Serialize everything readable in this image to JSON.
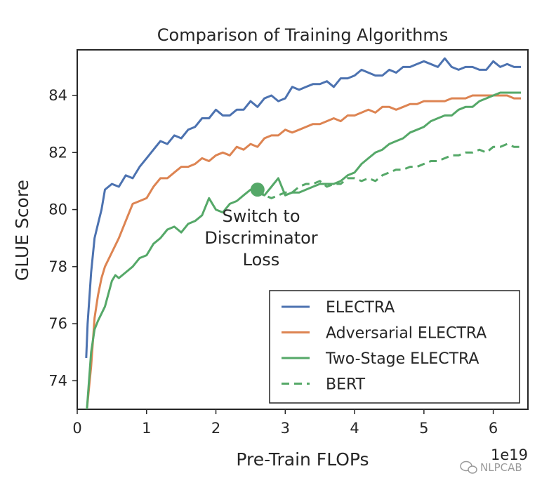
{
  "chart_data": {
    "type": "line",
    "title": "Comparison of Training Algorithms",
    "xlabel": "Pre-Train FLOPs",
    "ylabel": "GLUE Score",
    "x_scale_label": "1e19",
    "xlim": [
      0,
      6.5
    ],
    "ylim": [
      73,
      85.6
    ],
    "xticks": [
      0,
      1,
      2,
      3,
      4,
      5,
      6
    ],
    "yticks": [
      74,
      76,
      78,
      80,
      82,
      84
    ],
    "grid": false,
    "legend_position": "lower-right",
    "annotation": {
      "text_lines": [
        "Switch to",
        "Discriminator",
        "Loss"
      ],
      "marker_x": 2.6,
      "marker_y": 80.7
    },
    "series": [
      {
        "name": "ELECTRA",
        "color": "#4c72b0",
        "style": "solid",
        "x": [
          0.13,
          0.15,
          0.2,
          0.25,
          0.3,
          0.35,
          0.4,
          0.5,
          0.6,
          0.7,
          0.8,
          0.9,
          1.0,
          1.1,
          1.2,
          1.3,
          1.4,
          1.5,
          1.6,
          1.7,
          1.8,
          1.9,
          2.0,
          2.1,
          2.2,
          2.3,
          2.4,
          2.5,
          2.6,
          2.7,
          2.8,
          2.9,
          3.0,
          3.1,
          3.2,
          3.3,
          3.4,
          3.5,
          3.6,
          3.7,
          3.8,
          3.9,
          4.0,
          4.1,
          4.2,
          4.3,
          4.4,
          4.5,
          4.6,
          4.7,
          4.8,
          4.9,
          5.0,
          5.1,
          5.2,
          5.3,
          5.4,
          5.5,
          5.6,
          5.7,
          5.8,
          5.9,
          6.0,
          6.1,
          6.2,
          6.3,
          6.4
        ],
        "y": [
          74.8,
          76.0,
          77.8,
          79.0,
          79.5,
          80.0,
          80.7,
          80.9,
          80.8,
          81.2,
          81.1,
          81.5,
          81.8,
          82.1,
          82.4,
          82.3,
          82.6,
          82.5,
          82.8,
          82.9,
          83.2,
          83.2,
          83.5,
          83.3,
          83.3,
          83.5,
          83.5,
          83.8,
          83.6,
          83.9,
          84.0,
          83.8,
          83.9,
          84.3,
          84.2,
          84.3,
          84.4,
          84.4,
          84.5,
          84.3,
          84.6,
          84.6,
          84.7,
          84.9,
          84.8,
          84.7,
          84.7,
          84.9,
          84.8,
          85.0,
          85.0,
          85.1,
          85.2,
          85.1,
          85.0,
          85.3,
          85.0,
          84.9,
          85.0,
          85.0,
          84.9,
          84.9,
          85.2,
          85.0,
          85.1,
          85.0,
          85.0
        ]
      },
      {
        "name": "Adversarial ELECTRA",
        "color": "#dd8452",
        "style": "solid",
        "x": [
          0.14,
          0.2,
          0.25,
          0.3,
          0.35,
          0.4,
          0.5,
          0.6,
          0.7,
          0.8,
          0.9,
          1.0,
          1.1,
          1.2,
          1.3,
          1.4,
          1.5,
          1.6,
          1.7,
          1.8,
          1.9,
          2.0,
          2.1,
          2.2,
          2.3,
          2.4,
          2.5,
          2.6,
          2.7,
          2.8,
          2.9,
          3.0,
          3.1,
          3.2,
          3.3,
          3.4,
          3.5,
          3.6,
          3.7,
          3.8,
          3.9,
          4.0,
          4.1,
          4.2,
          4.3,
          4.4,
          4.5,
          4.6,
          4.7,
          4.8,
          4.9,
          5.0,
          5.1,
          5.2,
          5.3,
          5.4,
          5.5,
          5.6,
          5.7,
          5.8,
          5.9,
          6.0,
          6.1,
          6.2,
          6.3,
          6.4
        ],
        "y": [
          73.0,
          74.5,
          76.2,
          77.0,
          77.6,
          78.0,
          78.5,
          79.0,
          79.6,
          80.2,
          80.3,
          80.4,
          80.8,
          81.1,
          81.1,
          81.3,
          81.5,
          81.5,
          81.6,
          81.8,
          81.7,
          81.9,
          82.0,
          81.9,
          82.2,
          82.1,
          82.3,
          82.2,
          82.5,
          82.6,
          82.6,
          82.8,
          82.7,
          82.8,
          82.9,
          83.0,
          83.0,
          83.1,
          83.2,
          83.1,
          83.3,
          83.3,
          83.4,
          83.5,
          83.4,
          83.6,
          83.6,
          83.5,
          83.6,
          83.7,
          83.7,
          83.8,
          83.8,
          83.8,
          83.8,
          83.9,
          83.9,
          83.9,
          84.0,
          84.0,
          84.0,
          84.0,
          84.0,
          84.0,
          83.9,
          83.9
        ]
      },
      {
        "name": "Two-Stage ELECTRA",
        "color": "#55a868",
        "style": "solid",
        "x": [
          0.14,
          0.2,
          0.25,
          0.3,
          0.4,
          0.5,
          0.55,
          0.6,
          0.7,
          0.8,
          0.9,
          1.0,
          1.1,
          1.2,
          1.3,
          1.4,
          1.5,
          1.6,
          1.7,
          1.8,
          1.9,
          2.0,
          2.1,
          2.2,
          2.3,
          2.4,
          2.5,
          2.6,
          2.7,
          2.8,
          2.9,
          3.0,
          3.1,
          3.2,
          3.3,
          3.4,
          3.5,
          3.6,
          3.7,
          3.8,
          3.9,
          4.0,
          4.1,
          4.2,
          4.3,
          4.4,
          4.5,
          4.6,
          4.7,
          4.8,
          4.9,
          5.0,
          5.1,
          5.2,
          5.3,
          5.4,
          5.5,
          5.6,
          5.7,
          5.8,
          5.9,
          6.0,
          6.1,
          6.2,
          6.3,
          6.4
        ],
        "y": [
          73.0,
          75.0,
          75.8,
          76.1,
          76.6,
          77.5,
          77.7,
          77.6,
          77.8,
          78.0,
          78.3,
          78.4,
          78.8,
          79.0,
          79.3,
          79.4,
          79.2,
          79.5,
          79.6,
          79.8,
          80.4,
          80.0,
          79.9,
          80.2,
          80.3,
          80.5,
          80.7,
          80.6,
          80.5,
          80.8,
          81.1,
          80.5,
          80.6,
          80.6,
          80.7,
          80.8,
          80.9,
          80.9,
          80.9,
          81.0,
          81.2,
          81.3,
          81.6,
          81.8,
          82.0,
          82.1,
          82.3,
          82.4,
          82.5,
          82.7,
          82.8,
          82.9,
          83.1,
          83.2,
          83.3,
          83.3,
          83.5,
          83.6,
          83.6,
          83.8,
          83.9,
          84.0,
          84.1,
          84.1,
          84.1,
          84.1
        ]
      },
      {
        "name": "BERT",
        "color": "#55a868",
        "style": "dashed",
        "x": [
          2.6,
          2.7,
          2.8,
          2.9,
          3.0,
          3.1,
          3.2,
          3.3,
          3.4,
          3.5,
          3.6,
          3.7,
          3.8,
          3.9,
          4.0,
          4.1,
          4.2,
          4.3,
          4.4,
          4.5,
          4.6,
          4.7,
          4.8,
          4.9,
          5.0,
          5.1,
          5.2,
          5.3,
          5.4,
          5.5,
          5.6,
          5.7,
          5.8,
          5.9,
          6.0,
          6.1,
          6.2,
          6.3,
          6.4
        ],
        "y": [
          80.7,
          80.5,
          80.4,
          80.5,
          80.6,
          80.6,
          80.8,
          80.9,
          80.9,
          81.0,
          80.8,
          80.9,
          80.9,
          81.1,
          81.1,
          81.0,
          81.1,
          81.0,
          81.2,
          81.3,
          81.4,
          81.4,
          81.5,
          81.5,
          81.6,
          81.7,
          81.7,
          81.8,
          81.9,
          81.9,
          82.0,
          82.0,
          82.1,
          82.0,
          82.2,
          82.2,
          82.3,
          82.2,
          82.2
        ]
      }
    ]
  },
  "watermark": "NLPCAB"
}
